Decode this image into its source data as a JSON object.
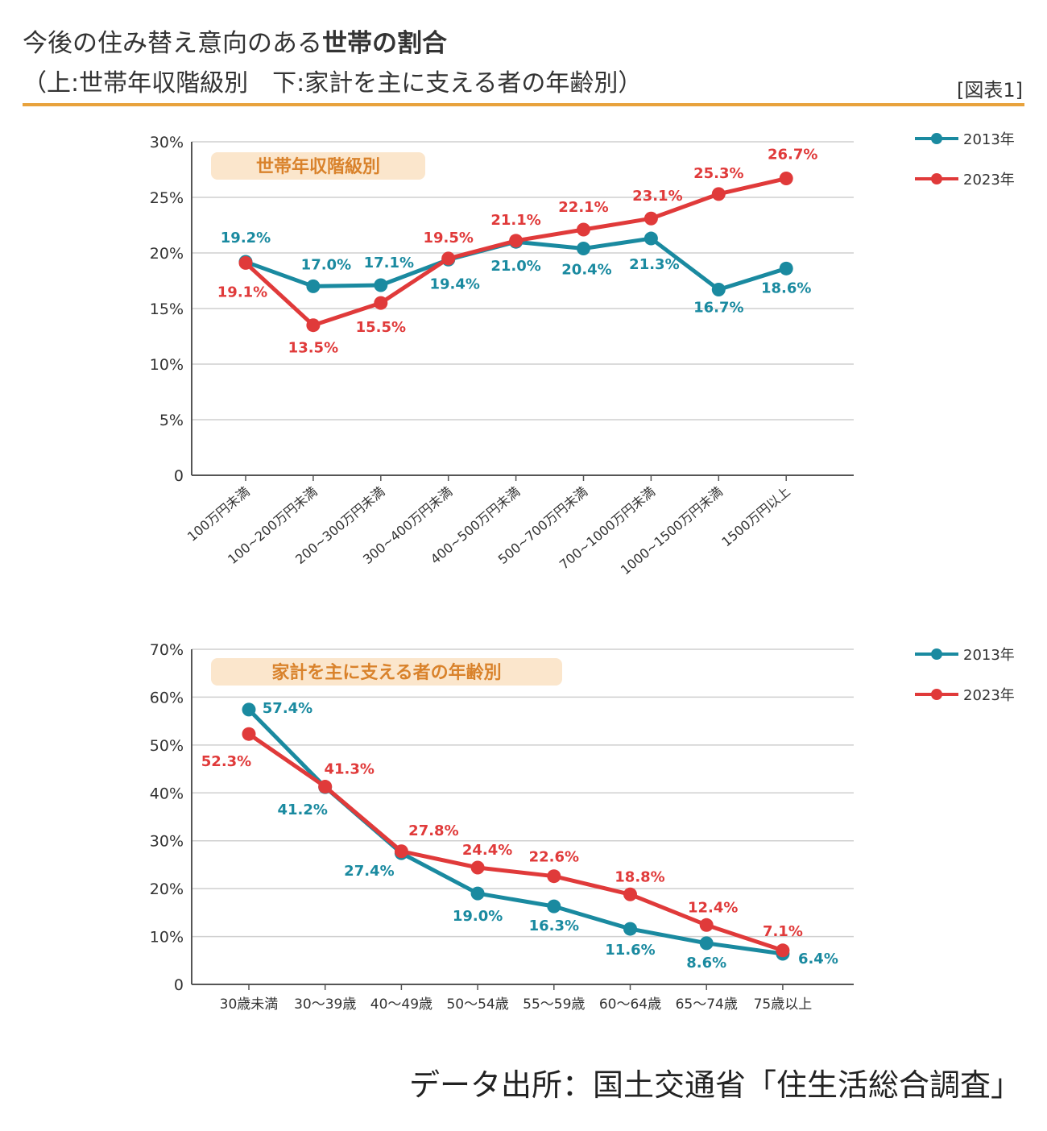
{
  "header": {
    "title_normal": "今後の住み替え意向のある",
    "title_bold": "世帯の割合",
    "subtitle": "（上:世帯年収階級別　下:家計を主に支える者の年齢別）",
    "figure_label": "[図表1]"
  },
  "source": "データ出所：国土交通省「住生活総合調査」",
  "colors": {
    "s2013": "#1a8aa0",
    "s2023": "#e03a3a",
    "accent": "#e8a23c",
    "badge_bg": "#fbe6cc"
  },
  "chart_data": [
    {
      "type": "line",
      "title": "世帯年収階級別",
      "categories": [
        "100万円未満",
        "100~200万円未満",
        "200~300万円未満",
        "300~400万円未満",
        "400~500万円未満",
        "500~700万円未満",
        "700~1000万円未満",
        "1000~1500万円未満",
        "1500万円以上"
      ],
      "yticks": [
        "0",
        "5%",
        "10%",
        "15%",
        "20%",
        "25%",
        "30%"
      ],
      "ylim": [
        0,
        30
      ],
      "grid": true,
      "legend": "top-right",
      "series": [
        {
          "name": "2013年",
          "values": [
            19.2,
            17.0,
            17.1,
            19.4,
            21.0,
            20.4,
            21.3,
            16.7,
            18.6
          ],
          "labels": [
            "19.2%",
            "17.0%",
            "17.1%",
            "19.4%",
            "21.0%",
            "20.4%",
            "21.3%",
            "16.7%",
            "18.6%"
          ]
        },
        {
          "name": "2023年",
          "values": [
            19.1,
            13.5,
            15.5,
            19.5,
            21.1,
            22.1,
            23.1,
            25.3,
            26.7
          ],
          "labels": [
            "19.1%",
            "13.5%",
            "15.5%",
            "19.5%",
            "21.1%",
            "22.1%",
            "23.1%",
            "25.3%",
            "26.7%"
          ]
        }
      ]
    },
    {
      "type": "line",
      "title": "家計を主に支える者の年齢別",
      "categories": [
        "30歳未満",
        "30～39歳",
        "40～49歳",
        "50～54歳",
        "55～59歳",
        "60～64歳",
        "65～74歳",
        "75歳以上"
      ],
      "yticks": [
        "0",
        "10%",
        "20%",
        "30%",
        "40%",
        "50%",
        "60%",
        "70%"
      ],
      "ylim": [
        0,
        70
      ],
      "grid": true,
      "legend": "top-right",
      "series": [
        {
          "name": "2013年",
          "values": [
            57.4,
            41.2,
            27.4,
            19.0,
            16.3,
            11.6,
            8.6,
            6.4
          ],
          "labels": [
            "57.4%",
            "41.2%",
            "27.4%",
            "19.0%",
            "16.3%",
            "11.6%",
            "8.6%",
            "6.4%"
          ]
        },
        {
          "name": "2023年",
          "values": [
            52.3,
            41.3,
            27.8,
            24.4,
            22.6,
            18.8,
            12.4,
            7.1
          ],
          "labels": [
            "52.3%",
            "41.3%",
            "27.8%",
            "24.4%",
            "22.6%",
            "18.8%",
            "12.4%",
            "7.1%"
          ]
        }
      ]
    }
  ]
}
